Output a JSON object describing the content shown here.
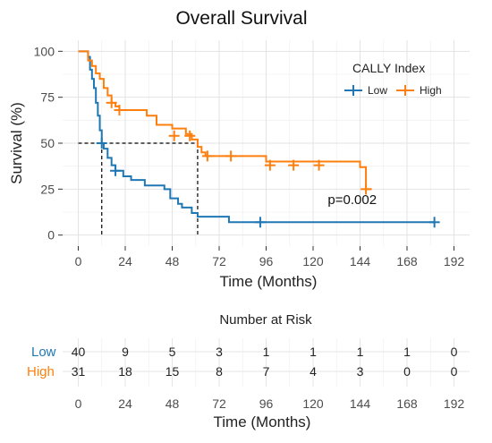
{
  "chart_data": {
    "type": "line",
    "subtype": "kaplan-meier-step",
    "title": "Overall Survival",
    "xlabel": "Time (Months)",
    "ylabel": "Survival (%)",
    "xlim": [
      -8,
      200
    ],
    "ylim": [
      -6,
      106
    ],
    "xticks": [
      0,
      24,
      48,
      72,
      96,
      120,
      144,
      168,
      192
    ],
    "yticks": [
      0,
      25,
      50,
      75,
      100
    ],
    "grid": true,
    "legend": {
      "title": "CALLY Index",
      "position": "top-right"
    },
    "colors": {
      "Low": "#1f77b4",
      "High": "#ff7f0e",
      "median_line": "#000000"
    },
    "series": [
      {
        "name": "Low",
        "color": "#1f77b4",
        "steps": [
          [
            0,
            100
          ],
          [
            5,
            97
          ],
          [
            6,
            90
          ],
          [
            7,
            85
          ],
          [
            8,
            80
          ],
          [
            9,
            72
          ],
          [
            10,
            65
          ],
          [
            11,
            57
          ],
          [
            12,
            50
          ],
          [
            13,
            47
          ],
          [
            15,
            42
          ],
          [
            17,
            38
          ],
          [
            19,
            35
          ],
          [
            23,
            32
          ],
          [
            27,
            30
          ],
          [
            34,
            27
          ],
          [
            44,
            25
          ],
          [
            47,
            20
          ],
          [
            51,
            17
          ],
          [
            53,
            15
          ],
          [
            58,
            12
          ],
          [
            61,
            10
          ],
          [
            77,
            7
          ],
          [
            182,
            7
          ]
        ],
        "censored": [
          [
            12,
            50
          ],
          [
            19,
            35
          ],
          [
            93,
            7
          ],
          [
            182,
            7
          ]
        ]
      },
      {
        "name": "High",
        "color": "#ff7f0e",
        "steps": [
          [
            0,
            100
          ],
          [
            5,
            95
          ],
          [
            7,
            92
          ],
          [
            9,
            88
          ],
          [
            11,
            85
          ],
          [
            13,
            80
          ],
          [
            15,
            76
          ],
          [
            17,
            72
          ],
          [
            19,
            70
          ],
          [
            21,
            68
          ],
          [
            35,
            65
          ],
          [
            40,
            60
          ],
          [
            48,
            58
          ],
          [
            55,
            55
          ],
          [
            58,
            52
          ],
          [
            61,
            48
          ],
          [
            63,
            45
          ],
          [
            65,
            43
          ],
          [
            96,
            40
          ],
          [
            144,
            37
          ],
          [
            147,
            25
          ],
          [
            150,
            25
          ]
        ],
        "censored": [
          [
            17,
            72
          ],
          [
            21,
            68
          ],
          [
            49,
            54
          ],
          [
            57,
            54
          ],
          [
            66,
            43
          ],
          [
            78,
            43
          ],
          [
            98,
            38
          ],
          [
            110,
            38
          ],
          [
            123,
            38
          ],
          [
            147,
            25
          ]
        ]
      }
    ],
    "median_reference": {
      "y": 50,
      "x_low": 12,
      "x_high": 61
    },
    "annotations": [
      {
        "text": "p=0.002",
        "x": 140,
        "y": 17
      }
    ],
    "risk_table": {
      "title": "Number at Risk",
      "times": [
        0,
        24,
        48,
        72,
        96,
        120,
        144,
        168,
        192
      ],
      "xlabel": "Time (Months)",
      "rows": [
        {
          "name": "Low",
          "color": "#1f77b4",
          "values": [
            40,
            9,
            5,
            3,
            1,
            1,
            1,
            1,
            0
          ]
        },
        {
          "name": "High",
          "color": "#ff7f0e",
          "values": [
            31,
            18,
            15,
            8,
            7,
            4,
            3,
            0,
            0
          ]
        }
      ]
    }
  }
}
